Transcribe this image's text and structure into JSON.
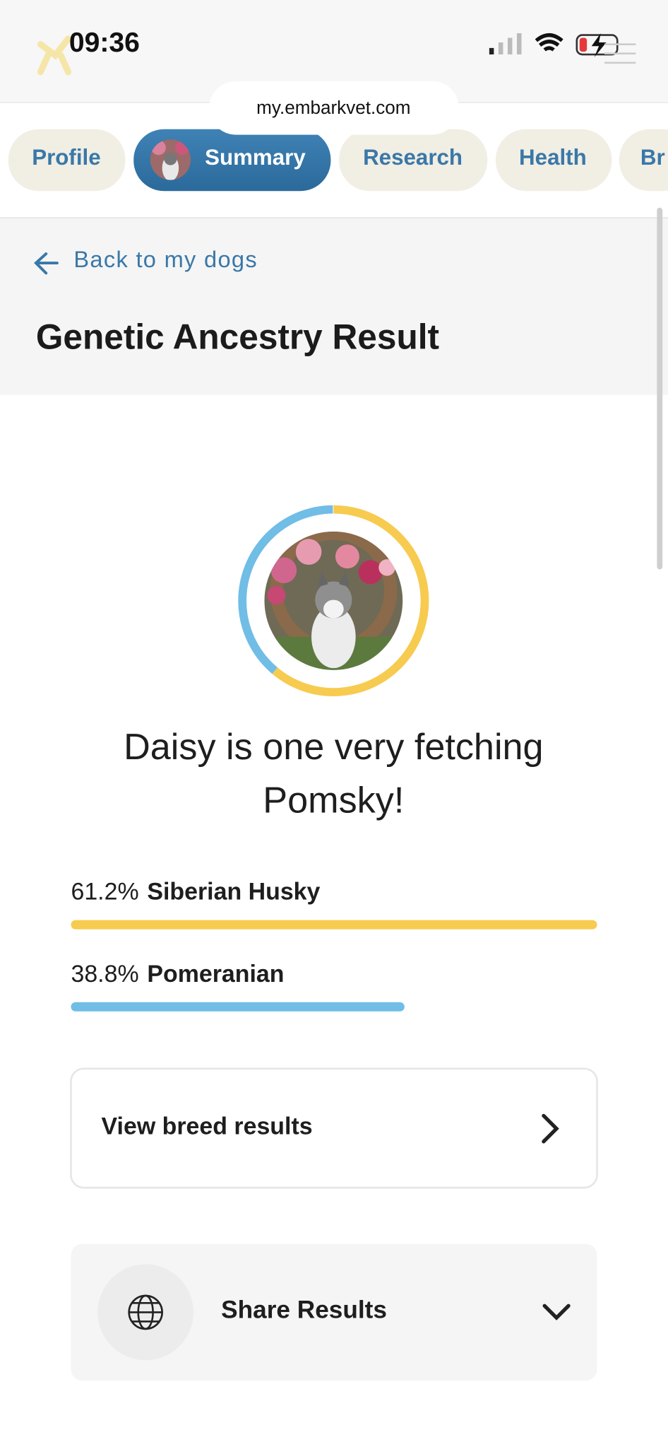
{
  "status_bar": {
    "time": "09:36"
  },
  "browser": {
    "url": "my.embarkvet.com"
  },
  "tabs": [
    "Profile",
    "Summary",
    "Research",
    "Health",
    "Br"
  ],
  "back_link": "Back to my dogs",
  "title": "Genetic Ancestry Result",
  "headline": [
    "Daisy is one very fetching",
    "Pomsky!"
  ],
  "breeds": [
    {
      "percent": 61.2,
      "percent_label": "61.2%",
      "name": "Siberian Husky",
      "color": "#f6cb4f"
    },
    {
      "percent": 38.8,
      "percent_label": "38.8%",
      "name": "Pomeranian",
      "color": "#70bde6"
    }
  ],
  "view_button": "View breed results",
  "share": "Share Results"
}
